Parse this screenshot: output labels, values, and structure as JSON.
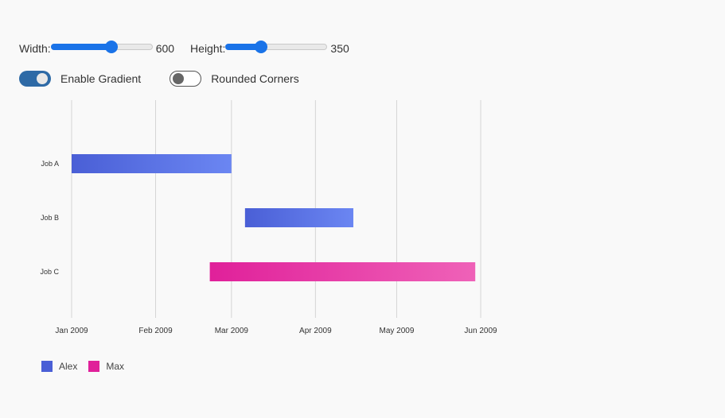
{
  "controls": {
    "width": {
      "label": "Width:",
      "value": "600",
      "fraction": 0.6
    },
    "height": {
      "label": "Height:",
      "value": "350",
      "fraction": 0.35
    },
    "gradient": {
      "label": "Enable Gradient",
      "on": true
    },
    "rounded": {
      "label": "Rounded Corners",
      "on": false
    }
  },
  "chart_data": {
    "type": "bar",
    "orientation": "horizontal-gantt",
    "categories": [
      "Job A",
      "Job B",
      "Job C"
    ],
    "x_ticks": [
      "Jan 2009",
      "Feb 2009",
      "Mar 2009",
      "Apr 2009",
      "May 2009",
      "Jun 2009"
    ],
    "xlim": [
      "2009-01-01",
      "2009-06-01"
    ],
    "tasks": [
      {
        "category": "Job A",
        "start": "2009-01-01",
        "end": "2009-03-01",
        "series": "Alex"
      },
      {
        "category": "Job B",
        "start": "2009-03-06",
        "end": "2009-04-15",
        "series": "Alex"
      },
      {
        "category": "Job C",
        "start": "2009-02-21",
        "end": "2009-05-30",
        "series": "Max"
      }
    ],
    "series": [
      {
        "name": "Alex",
        "color": "#4a5fd6",
        "color_end": "#6b86f2"
      },
      {
        "name": "Max",
        "color": "#e0209a",
        "color_end": "#ef62b8"
      }
    ],
    "grid": true,
    "legend_position": "bottom-left"
  }
}
